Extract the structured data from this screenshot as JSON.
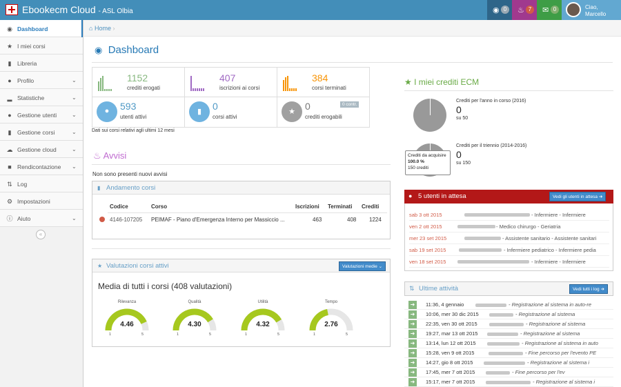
{
  "app": {
    "title": "Ebookecm Cloud",
    "subtitle": "- ASL Olbia"
  },
  "topbar": {
    "tags_count": "0",
    "alerts_count": "7",
    "messages_count": "0",
    "greeting": "Ciao,",
    "user": "Marcello"
  },
  "sidebar": {
    "items": [
      {
        "label": "Dashboard",
        "icon": "dashboard-icon"
      },
      {
        "label": "I miei corsi",
        "icon": "star-icon"
      },
      {
        "label": "Libreria",
        "icon": "book-icon"
      },
      {
        "label": "Profilo",
        "icon": "user-icon"
      },
      {
        "label": "Statistiche",
        "icon": "signal-icon"
      },
      {
        "label": "Gestione utenti",
        "icon": "users-icon"
      },
      {
        "label": "Gestione corsi",
        "icon": "book-icon"
      },
      {
        "label": "Gestione cloud",
        "icon": "cloud-icon"
      },
      {
        "label": "Rendicontazione",
        "icon": "file-icon"
      },
      {
        "label": "Log",
        "icon": "sort-icon"
      },
      {
        "label": "Impostazioni",
        "icon": "gear-icon"
      },
      {
        "label": "Aiuto",
        "icon": "info-icon"
      }
    ]
  },
  "breadcrumb": {
    "home": "Home"
  },
  "page": {
    "title": "Dashboard"
  },
  "stats": {
    "crediti_erogati": {
      "value": "1152",
      "label": "crediti erogati",
      "color": "#87b87f"
    },
    "iscrizioni": {
      "value": "407",
      "label": "iscrizioni ai corsi",
      "color": "#a069c3"
    },
    "terminati": {
      "value": "384",
      "label": "corsi terminati",
      "color": "#f89406"
    },
    "utenti": {
      "value": "593",
      "label": "utenti attivi"
    },
    "corsi": {
      "value": "0",
      "label": "corsi attivi"
    },
    "erogabili": {
      "value": "0",
      "label": "crediti erogabili",
      "badge": "0 contr."
    },
    "note": "Dati sui corsi relativi agli ultimi 12 mesi"
  },
  "avvisi": {
    "title": "Avvisi",
    "empty": "Non sono presenti nuovi avvisi"
  },
  "andamento": {
    "title": "Andamento corsi",
    "headers": [
      "Codice",
      "Corso",
      "Iscrizioni",
      "Terminati",
      "Crediti"
    ],
    "rows": [
      {
        "codice": "4146-107205",
        "corso": "PEIMAF - Piano d'Emergenza Interno per Massiccio ...",
        "iscrizioni": "463",
        "terminati": "408",
        "crediti": "1224"
      }
    ]
  },
  "valutazioni": {
    "title": "Valutazioni corsi attivi",
    "button": "Valutazioni medie",
    "media": "Media di tutti i corsi (408 valutazioni)",
    "gauges": [
      {
        "label": "Rilevanza",
        "value": "4.46",
        "level": 0.865,
        "min": "1",
        "max": "5"
      },
      {
        "label": "Qualità",
        "value": "4.30",
        "level": 0.825,
        "min": "1",
        "max": "5"
      },
      {
        "label": "Utilità",
        "value": "4.32",
        "level": 0.83,
        "min": "1",
        "max": "5"
      },
      {
        "label": "Tempo",
        "value": "2.76",
        "level": 0.44,
        "min": "1",
        "max": "5"
      }
    ]
  },
  "ecm": {
    "title": "I miei crediti ECM",
    "anno": {
      "label": "Crediti per l'anno in corso (2016)",
      "value": "0",
      "of": "su 50"
    },
    "triennio": {
      "label": "Crediti per il triennio (2014-2016)",
      "value": "0",
      "of": "su 150"
    },
    "tooltip": {
      "line1": "Crediti da acquisire",
      "line2": "100.0 %",
      "line3": "150 crediti"
    }
  },
  "attesa": {
    "title": "5 utenti in attesa",
    "button": "Vedi gli utenti in attesa",
    "rows": [
      {
        "date": "sab 3 ott 2015",
        "role": "Infermiere - Infermiere"
      },
      {
        "date": "ven 2 ott 2015",
        "role": "Medico chirurgo - Geriatria"
      },
      {
        "date": "mer 23 set 2015",
        "role": "Assistente sanitario - Assistente sanitari"
      },
      {
        "date": "sab 19 set 2015",
        "role": "Infermiere pediatrico - Infermiere pedia"
      },
      {
        "date": "ven 18 set 2015",
        "role": "Infermiere - Infermiere"
      }
    ]
  },
  "attivita": {
    "title": "Ultime attività",
    "button": "Vedi tutti i log",
    "rows": [
      {
        "time": "11:36, 4 gennaio",
        "event": "Registrazione al sistema in auto-re"
      },
      {
        "time": "10:06, mer 30 dic 2015",
        "event": "Registrazione al sistema"
      },
      {
        "time": "22:35, ven 30 ott 2015",
        "event": "Registrazione al sistema"
      },
      {
        "time": "19:27, mar 13 ott 2015",
        "event": "Registrazione al sistema"
      },
      {
        "time": "13:14, lun 12 ott 2015",
        "event": "Registrazione al sistema in auto"
      },
      {
        "time": "15:28, ven 9 ott 2015",
        "event": "Fine percorso per l'evento PE"
      },
      {
        "time": "14:27, gio 8 ott 2015",
        "event": "Registrazione al sistema i"
      },
      {
        "time": "17:45, mer 7 ott 2015",
        "event": "Fine percorso per l'ev"
      },
      {
        "time": "15:17, mer 7 ott 2015",
        "event": "Registrazione al sistema i"
      }
    ]
  }
}
